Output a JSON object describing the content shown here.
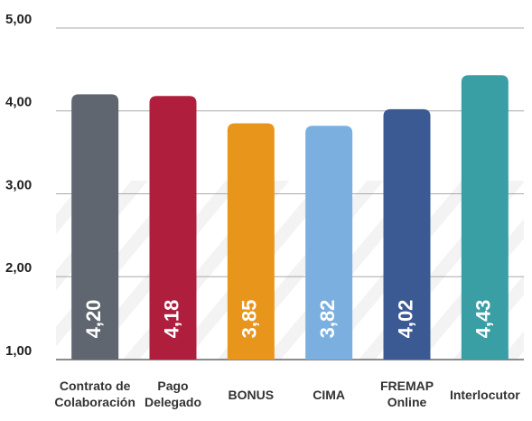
{
  "chart_data": {
    "type": "bar",
    "categories": [
      [
        "Contrato de",
        "Colaboración"
      ],
      [
        "Pago",
        "Delegado"
      ],
      [
        "BONUS"
      ],
      [
        "CIMA"
      ],
      [
        "FREMAP",
        "Online"
      ],
      [
        "Interlocutor"
      ]
    ],
    "values": [
      4.2,
      4.18,
      3.85,
      3.82,
      4.02,
      4.43
    ],
    "value_labels": [
      "4,20",
      "4,18",
      "3,85",
      "3,82",
      "4,02",
      "4,43"
    ],
    "colors": [
      "#5f6670",
      "#b01e3e",
      "#e8951c",
      "#7aafe0",
      "#3b5a94",
      "#3a9ea5"
    ],
    "ylim": [
      1,
      5
    ],
    "yticks": [
      {
        "value": 1,
        "label": "1,00"
      },
      {
        "value": 2,
        "label": "2,00"
      },
      {
        "value": 3,
        "label": "3,00"
      },
      {
        "value": 4,
        "label": "4,00"
      },
      {
        "value": 5,
        "label": "5,00"
      }
    ],
    "grid": true
  }
}
